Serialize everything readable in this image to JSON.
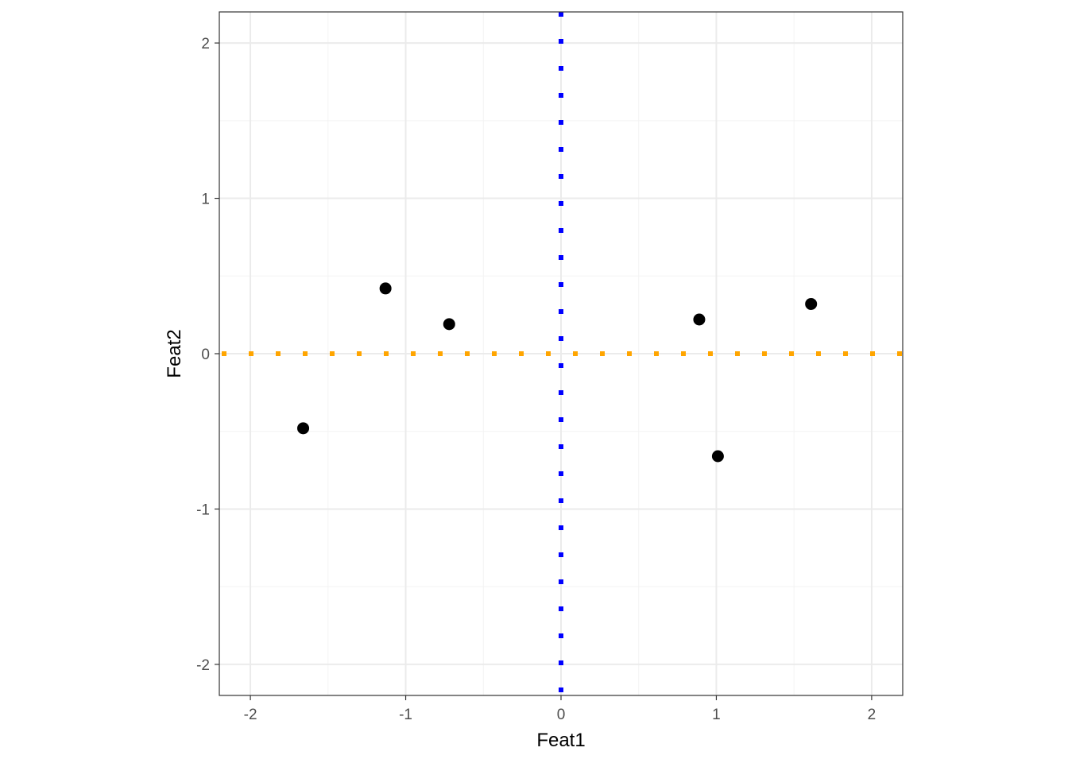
{
  "chart_data": {
    "type": "scatter",
    "title": "",
    "xlabel": "Feat1",
    "ylabel": "Feat2",
    "xlim": [
      -2.2,
      2.2
    ],
    "ylim": [
      -2.2,
      2.2
    ],
    "x_ticks": [
      -2,
      -1,
      0,
      1,
      2
    ],
    "y_ticks": [
      -2,
      -1,
      0,
      1,
      2
    ],
    "x_tick_labels": [
      "-2",
      "-1",
      "0",
      "1",
      "2"
    ],
    "y_tick_labels": [
      "-2",
      "-1",
      "0",
      "1",
      "2"
    ],
    "grid": true,
    "legend": "none",
    "points": [
      {
        "x": -1.66,
        "y": -0.48
      },
      {
        "x": -1.13,
        "y": 0.42
      },
      {
        "x": -0.72,
        "y": 0.19
      },
      {
        "x": 0.89,
        "y": 0.22
      },
      {
        "x": 1.01,
        "y": -0.66
      },
      {
        "x": 1.61,
        "y": 0.32
      }
    ],
    "reference_lines": [
      {
        "orientation": "vertical",
        "value": 0,
        "style": "dotted",
        "color": "#0000ff"
      },
      {
        "orientation": "horizontal",
        "value": 0,
        "style": "dotted",
        "color": "#ffa500"
      }
    ],
    "colors": {
      "points": "#000000",
      "grid_major": "#ebebeb",
      "grid_minor": "#f3f3f3",
      "panel_border": "#333333",
      "tick_text": "#4d4d4d"
    }
  }
}
